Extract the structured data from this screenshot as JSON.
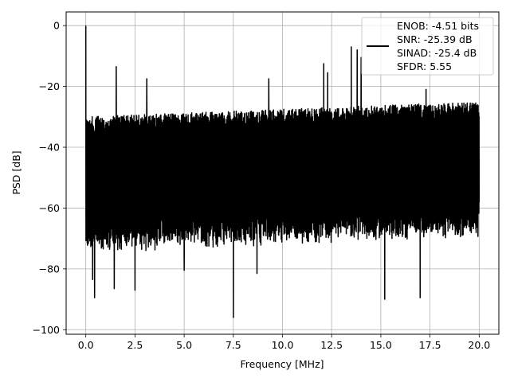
{
  "chart_data": {
    "type": "line",
    "xlabel": "Frequency [MHz]",
    "ylabel": "PSD [dB]",
    "xlim": [
      -1.0,
      21.0
    ],
    "ylim": [
      -101.5,
      4.5
    ],
    "xticks": [
      0.0,
      2.5,
      5.0,
      7.5,
      10.0,
      12.5,
      15.0,
      17.5,
      20.0
    ],
    "xtick_labels": [
      "0.0",
      "2.5",
      "5.0",
      "7.5",
      "10.0",
      "12.5",
      "15.0",
      "17.5",
      "20.0"
    ],
    "yticks": [
      0,
      -20,
      -40,
      -60,
      -80,
      -100
    ],
    "ytick_labels": [
      "0",
      "−20",
      "−40",
      "−60",
      "−80",
      "−100"
    ],
    "grid": true,
    "legend_placement": "top-right",
    "series": [
      {
        "name": "ENOB: -4.51 bits\nSNR: -25.39 dB\nSINAD: -25.4 dB\nSFDR: 5.55",
        "color": "#000000",
        "x_range": [
          0,
          20
        ],
        "noise_floor_upper_db": -30,
        "noise_floor_lower_db": -70,
        "peaks": [
          {
            "x": 0.0,
            "y": 0.0
          },
          {
            "x": 0.35,
            "y": -83.5
          },
          {
            "x": 0.45,
            "y": -89.5
          },
          {
            "x": 1.45,
            "y": -86.5
          },
          {
            "x": 1.55,
            "y": -13.5
          },
          {
            "x": 2.5,
            "y": -87.0
          },
          {
            "x": 3.1,
            "y": -17.5
          },
          {
            "x": 5.0,
            "y": -80.5
          },
          {
            "x": 7.5,
            "y": -96.0
          },
          {
            "x": 8.7,
            "y": -81.5
          },
          {
            "x": 9.3,
            "y": -17.5
          },
          {
            "x": 12.1,
            "y": -12.5
          },
          {
            "x": 12.3,
            "y": -15.5
          },
          {
            "x": 13.5,
            "y": -7.0
          },
          {
            "x": 13.8,
            "y": -8.0
          },
          {
            "x": 14.0,
            "y": -10.5
          },
          {
            "x": 15.2,
            "y": -90.0
          },
          {
            "x": 17.0,
            "y": -89.5
          },
          {
            "x": 17.3,
            "y": -21.0
          }
        ]
      }
    ]
  },
  "legend": {
    "lines": [
      "ENOB: -4.51 bits",
      "SNR: -25.39 dB",
      "SINAD: -25.4 dB",
      "SFDR: 5.55"
    ]
  }
}
